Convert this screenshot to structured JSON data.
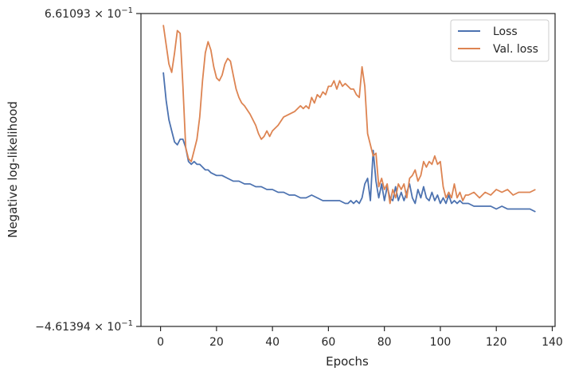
{
  "chart_data": {
    "type": "line",
    "xlabel": "Epochs",
    "ylabel": "Negative log-likelihood",
    "xlim": [
      -7,
      141
    ],
    "ylim": [
      -0.461394,
      0.661093
    ],
    "x_ticks": [
      0,
      20,
      40,
      60,
      80,
      100,
      120,
      140
    ],
    "y_tick_labels": [
      {
        "value": 0.661093,
        "mantissa": "6.61093",
        "exponent": "−1",
        "label": "6.61093×10^−1"
      },
      {
        "value": -0.461394,
        "mantissa": "−4.61394",
        "exponent": "−1",
        "label": "−4.61394×10^−1"
      }
    ],
    "grid": false,
    "legend_position": "top-right",
    "series": [
      {
        "name": "Loss",
        "color": "#4c72b0",
        "points": [
          [
            1,
            0.45
          ],
          [
            2,
            0.35
          ],
          [
            3,
            0.28
          ],
          [
            4,
            0.24
          ],
          [
            5,
            0.2
          ],
          [
            6,
            0.19
          ],
          [
            7,
            0.21
          ],
          [
            8,
            0.21
          ],
          [
            9,
            0.18
          ],
          [
            10,
            0.13
          ],
          [
            11,
            0.12
          ],
          [
            12,
            0.13
          ],
          [
            13,
            0.12
          ],
          [
            14,
            0.12
          ],
          [
            15,
            0.11
          ],
          [
            16,
            0.1
          ],
          [
            17,
            0.1
          ],
          [
            18,
            0.09
          ],
          [
            20,
            0.08
          ],
          [
            22,
            0.08
          ],
          [
            24,
            0.07
          ],
          [
            26,
            0.06
          ],
          [
            28,
            0.06
          ],
          [
            30,
            0.05
          ],
          [
            32,
            0.05
          ],
          [
            34,
            0.04
          ],
          [
            36,
            0.04
          ],
          [
            38,
            0.03
          ],
          [
            40,
            0.03
          ],
          [
            42,
            0.02
          ],
          [
            44,
            0.02
          ],
          [
            46,
            0.01
          ],
          [
            48,
            0.01
          ],
          [
            50,
            0.0
          ],
          [
            52,
            0.0
          ],
          [
            54,
            0.01
          ],
          [
            56,
            0.0
          ],
          [
            58,
            -0.01
          ],
          [
            60,
            -0.01
          ],
          [
            62,
            -0.01
          ],
          [
            64,
            -0.01
          ],
          [
            66,
            -0.02
          ],
          [
            67,
            -0.02
          ],
          [
            68,
            -0.01
          ],
          [
            69,
            -0.02
          ],
          [
            70,
            -0.01
          ],
          [
            71,
            -0.02
          ],
          [
            72,
            0.0
          ],
          [
            73,
            0.05
          ],
          [
            74,
            0.07
          ],
          [
            75,
            -0.01
          ],
          [
            76,
            0.17
          ],
          [
            77,
            0.06
          ],
          [
            78,
            0.0
          ],
          [
            79,
            0.05
          ],
          [
            80,
            -0.01
          ],
          [
            81,
            0.04
          ],
          [
            82,
            0.0
          ],
          [
            83,
            -0.01
          ],
          [
            84,
            0.04
          ],
          [
            85,
            -0.01
          ],
          [
            86,
            0.02
          ],
          [
            87,
            -0.01
          ],
          [
            88,
            0.02
          ],
          [
            89,
            0.05
          ],
          [
            90,
            0.0
          ],
          [
            91,
            -0.02
          ],
          [
            92,
            0.03
          ],
          [
            93,
            0.0
          ],
          [
            94,
            0.04
          ],
          [
            95,
            0.0
          ],
          [
            96,
            -0.01
          ],
          [
            97,
            0.02
          ],
          [
            98,
            -0.01
          ],
          [
            99,
            0.01
          ],
          [
            100,
            -0.02
          ],
          [
            101,
            0.0
          ],
          [
            102,
            -0.02
          ],
          [
            103,
            0.01
          ],
          [
            104,
            -0.02
          ],
          [
            105,
            -0.01
          ],
          [
            106,
            -0.02
          ],
          [
            107,
            -0.01
          ],
          [
            108,
            -0.02
          ],
          [
            110,
            -0.02
          ],
          [
            112,
            -0.03
          ],
          [
            114,
            -0.03
          ],
          [
            116,
            -0.03
          ],
          [
            118,
            -0.03
          ],
          [
            120,
            -0.04
          ],
          [
            122,
            -0.03
          ],
          [
            124,
            -0.04
          ],
          [
            126,
            -0.04
          ],
          [
            128,
            -0.04
          ],
          [
            130,
            -0.04
          ],
          [
            132,
            -0.04
          ],
          [
            134,
            -0.05
          ]
        ]
      },
      {
        "name": "Val. loss",
        "color": "#dd8452",
        "points": [
          [
            1,
            0.62
          ],
          [
            2,
            0.55
          ],
          [
            3,
            0.48
          ],
          [
            4,
            0.45
          ],
          [
            5,
            0.52
          ],
          [
            6,
            0.6
          ],
          [
            7,
            0.59
          ],
          [
            8,
            0.4
          ],
          [
            9,
            0.18
          ],
          [
            10,
            0.14
          ],
          [
            11,
            0.13
          ],
          [
            12,
            0.17
          ],
          [
            13,
            0.21
          ],
          [
            14,
            0.29
          ],
          [
            15,
            0.42
          ],
          [
            16,
            0.52
          ],
          [
            17,
            0.56
          ],
          [
            18,
            0.53
          ],
          [
            19,
            0.47
          ],
          [
            20,
            0.43
          ],
          [
            21,
            0.42
          ],
          [
            22,
            0.44
          ],
          [
            23,
            0.48
          ],
          [
            24,
            0.5
          ],
          [
            25,
            0.49
          ],
          [
            26,
            0.44
          ],
          [
            27,
            0.39
          ],
          [
            28,
            0.36
          ],
          [
            29,
            0.34
          ],
          [
            30,
            0.33
          ],
          [
            32,
            0.3
          ],
          [
            34,
            0.26
          ],
          [
            35,
            0.23
          ],
          [
            36,
            0.21
          ],
          [
            37,
            0.22
          ],
          [
            38,
            0.24
          ],
          [
            39,
            0.22
          ],
          [
            40,
            0.24
          ],
          [
            42,
            0.26
          ],
          [
            44,
            0.29
          ],
          [
            46,
            0.3
          ],
          [
            48,
            0.31
          ],
          [
            50,
            0.33
          ],
          [
            51,
            0.32
          ],
          [
            52,
            0.33
          ],
          [
            53,
            0.32
          ],
          [
            54,
            0.36
          ],
          [
            55,
            0.34
          ],
          [
            56,
            0.37
          ],
          [
            57,
            0.36
          ],
          [
            58,
            0.38
          ],
          [
            59,
            0.37
          ],
          [
            60,
            0.4
          ],
          [
            61,
            0.4
          ],
          [
            62,
            0.42
          ],
          [
            63,
            0.39
          ],
          [
            64,
            0.42
          ],
          [
            65,
            0.4
          ],
          [
            66,
            0.41
          ],
          [
            67,
            0.4
          ],
          [
            68,
            0.39
          ],
          [
            69,
            0.39
          ],
          [
            70,
            0.37
          ],
          [
            71,
            0.36
          ],
          [
            72,
            0.47
          ],
          [
            73,
            0.4
          ],
          [
            74,
            0.23
          ],
          [
            75,
            0.19
          ],
          [
            76,
            0.15
          ],
          [
            77,
            0.16
          ],
          [
            78,
            0.04
          ],
          [
            79,
            0.07
          ],
          [
            80,
            0.03
          ],
          [
            81,
            0.05
          ],
          [
            82,
            -0.02
          ],
          [
            83,
            0.03
          ],
          [
            84,
            0.0
          ],
          [
            85,
            0.05
          ],
          [
            86,
            0.03
          ],
          [
            87,
            0.05
          ],
          [
            88,
            0.0
          ],
          [
            89,
            0.07
          ],
          [
            90,
            0.08
          ],
          [
            91,
            0.1
          ],
          [
            92,
            0.06
          ],
          [
            93,
            0.08
          ],
          [
            94,
            0.13
          ],
          [
            95,
            0.11
          ],
          [
            96,
            0.13
          ],
          [
            97,
            0.12
          ],
          [
            98,
            0.15
          ],
          [
            99,
            0.12
          ],
          [
            100,
            0.13
          ],
          [
            101,
            0.04
          ],
          [
            102,
            0.0
          ],
          [
            103,
            0.02
          ],
          [
            104,
            0.0
          ],
          [
            105,
            0.05
          ],
          [
            106,
            0.0
          ],
          [
            107,
            0.02
          ],
          [
            108,
            -0.01
          ],
          [
            109,
            0.01
          ],
          [
            110,
            0.01
          ],
          [
            112,
            0.02
          ],
          [
            114,
            0.0
          ],
          [
            116,
            0.02
          ],
          [
            118,
            0.01
          ],
          [
            120,
            0.03
          ],
          [
            122,
            0.02
          ],
          [
            124,
            0.03
          ],
          [
            126,
            0.01
          ],
          [
            128,
            0.02
          ],
          [
            130,
            0.02
          ],
          [
            132,
            0.02
          ],
          [
            134,
            0.03
          ]
        ]
      }
    ]
  }
}
